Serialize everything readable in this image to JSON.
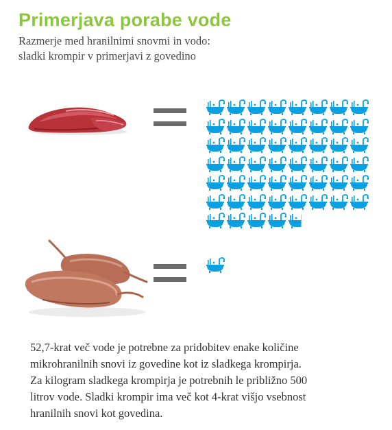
{
  "title": "Primerjava porabe vode",
  "subtitle": [
    "Razmerje med hranilnimi snovmi in vodo:",
    "sladki krompir v primerjavi z govedino"
  ],
  "colors": {
    "title": "#8cc63f",
    "bathtub": "#0aa0e2",
    "equals": "#6b6b6b",
    "text": "#333333"
  },
  "comparison": {
    "beef": {
      "image": "beef-steak-image",
      "bathtubs": 52.7
    },
    "sweet_potato": {
      "image": "sweet-potato-image",
      "bathtubs": 1
    }
  },
  "icons": {
    "equals": "equals-sign",
    "unit": "bathtub-icon"
  },
  "body": [
    "52,7-krat več vode  je potrebne za pridobitev enake količine",
    "mikrohranilnih snovi iz govedine kot iz sladkega krompirja.",
    "Za kilogram sladkega krompirja je potrebnih le približno 500",
    "litrov vode. Sladki krompir ima več kot 4-krat višjo vsebnost",
    "hranilnih snovi kot govedina."
  ]
}
